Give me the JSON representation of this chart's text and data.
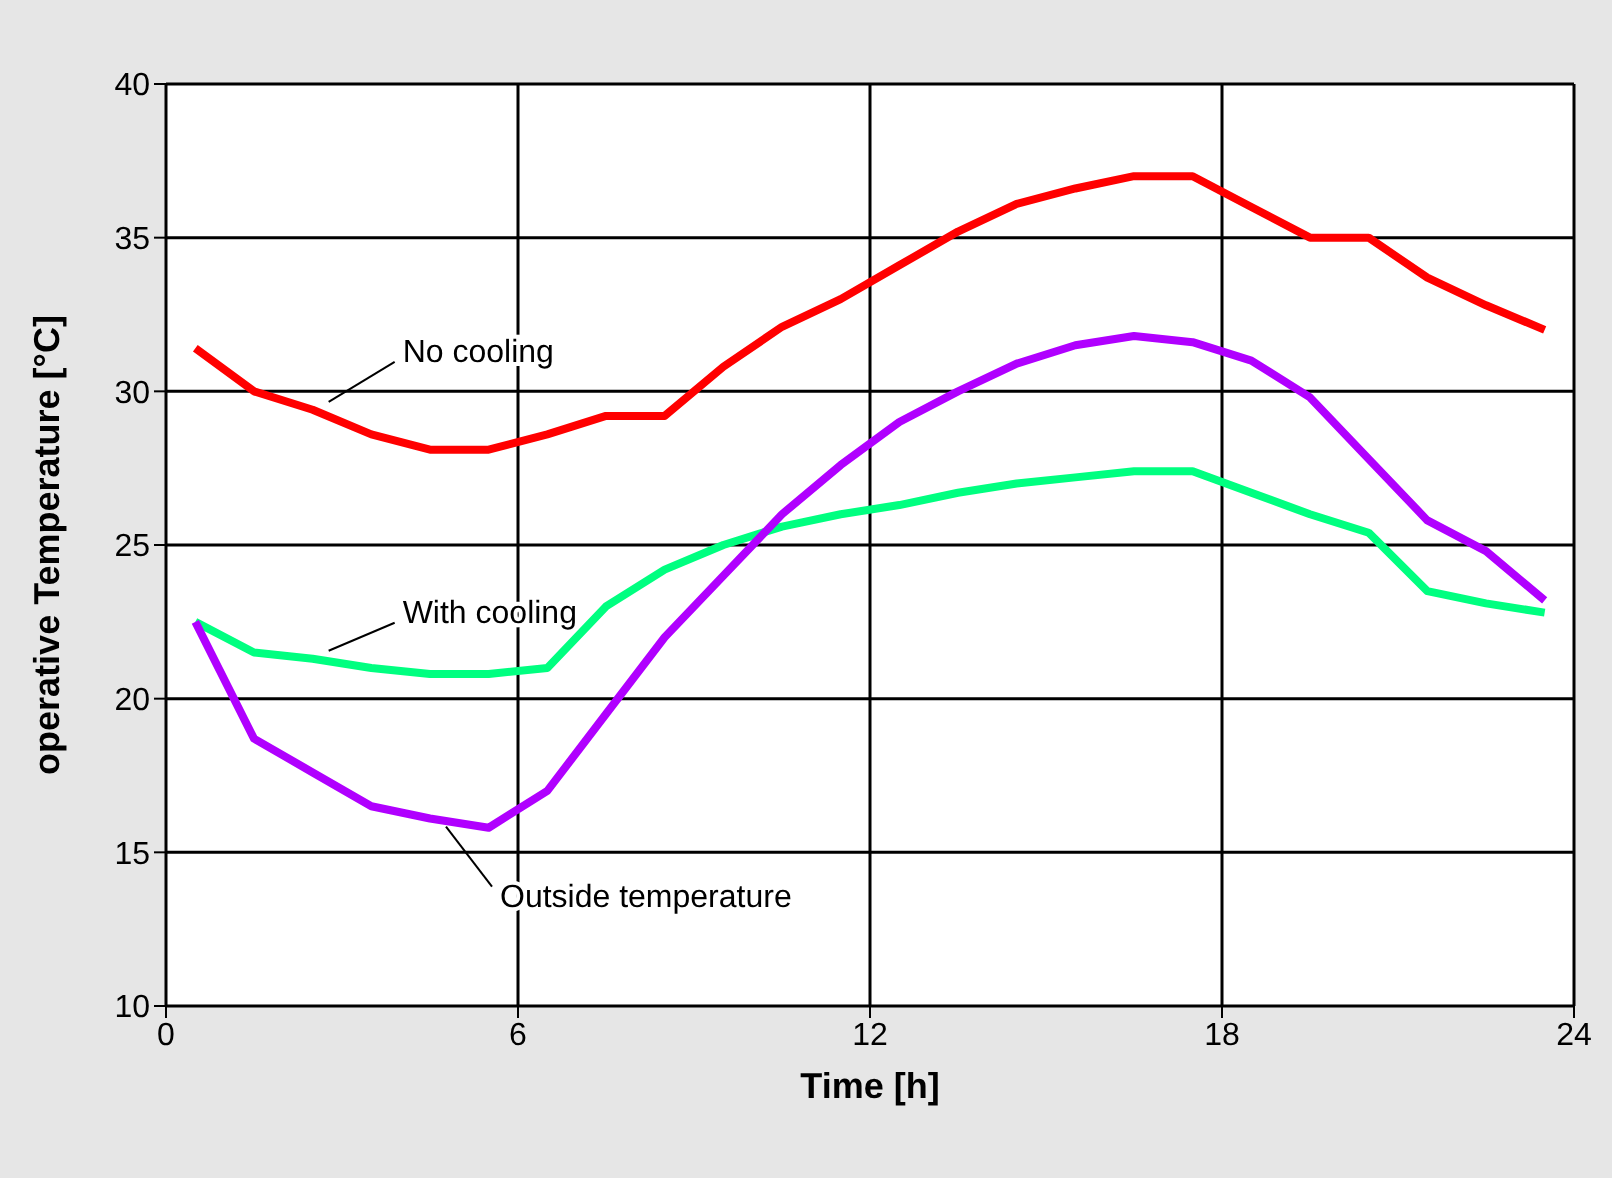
{
  "chart_data": {
    "type": "line",
    "xlabel": "Time [h]",
    "ylabel": "operative Temperature [°C]",
    "x": [
      0.5,
      1.5,
      2.5,
      3.5,
      4.5,
      5.5,
      6.5,
      7.5,
      8.5,
      9.5,
      10.5,
      11.5,
      12.5,
      13.5,
      14.5,
      15.5,
      16.5,
      17.5,
      18.5,
      19.5,
      20.5,
      21.5,
      22.5,
      23.5
    ],
    "series": [
      {
        "name": "No cooling",
        "color": "#ff0000",
        "values": [
          31.4,
          30.0,
          29.4,
          28.6,
          28.1,
          28.1,
          28.6,
          29.2,
          29.2,
          30.8,
          32.1,
          33.0,
          34.1,
          35.2,
          36.1,
          36.6,
          37.0,
          37.0,
          36.0,
          35.0,
          35.0,
          33.7,
          32.8,
          32.0
        ]
      },
      {
        "name": "With cooling",
        "color": "#00ff80",
        "values": [
          22.5,
          21.5,
          21.3,
          21.0,
          20.8,
          20.8,
          21.0,
          23.0,
          24.2,
          25.0,
          25.6,
          26.0,
          26.3,
          26.7,
          27.0,
          27.2,
          27.4,
          27.4,
          26.7,
          26.0,
          25.4,
          23.5,
          23.1,
          22.8
        ]
      },
      {
        "name": "Outside temperature",
        "color": "#b000ff",
        "values": [
          22.5,
          18.7,
          17.6,
          16.5,
          16.1,
          15.8,
          17.0,
          19.5,
          22.0,
          24.0,
          26.0,
          27.6,
          29.0,
          30.0,
          30.9,
          31.5,
          31.8,
          31.6,
          31.0,
          29.8,
          27.8,
          25.8,
          24.8,
          23.2
        ]
      }
    ],
    "xlim": [
      0,
      24
    ],
    "xticks": [
      0,
      6,
      12,
      18,
      24
    ],
    "ylim": [
      10,
      40
    ],
    "yticks": [
      10,
      15,
      20,
      25,
      30,
      35,
      40
    ],
    "grid": true,
    "marker": "none",
    "line_style": "solid"
  }
}
